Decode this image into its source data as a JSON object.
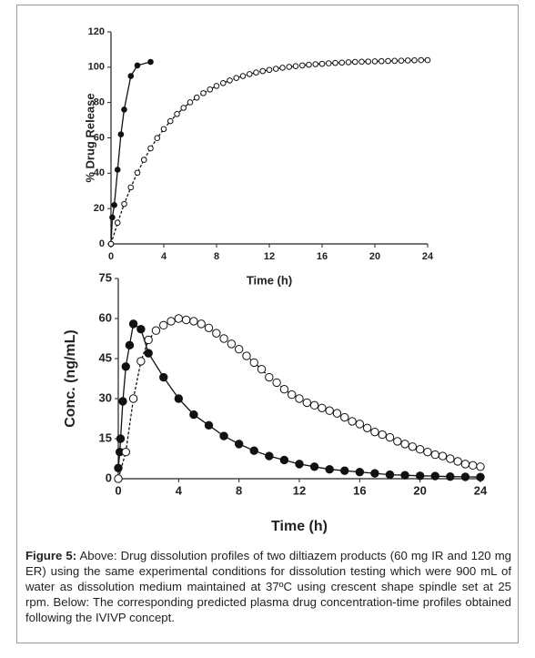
{
  "chart_data": [
    {
      "type": "line",
      "xlabel": "Time (h)",
      "ylabel": "% Drug Release",
      "xlim": [
        0,
        24
      ],
      "ylim": [
        0,
        120
      ],
      "xticks": [
        0,
        4,
        8,
        12,
        16,
        20,
        24
      ],
      "yticks": [
        0,
        20,
        40,
        60,
        80,
        100,
        120
      ],
      "series": [
        {
          "color": "#111111",
          "marker": "filled",
          "line_style": "solid",
          "x": [
            0,
            0.1,
            0.25,
            0.5,
            0.75,
            1,
            1.5,
            2,
            3
          ],
          "values": [
            0,
            15,
            22,
            42,
            62,
            76,
            95,
            101,
            103
          ]
        },
        {
          "color": "#111111",
          "marker": "open",
          "line_style": "dashed",
          "x": [
            0,
            0.5,
            1,
            1.5,
            2,
            2.5,
            3,
            3.5,
            4,
            4.5,
            5,
            5.5,
            6,
            6.5,
            7,
            7.5,
            8,
            8.5,
            9,
            9.5,
            10,
            10.5,
            11,
            11.5,
            12,
            12.5,
            13,
            13.5,
            14,
            14.5,
            15,
            15.5,
            16,
            16.5,
            17,
            17.5,
            18,
            18.5,
            19,
            19.5,
            20,
            20.5,
            21,
            21.5,
            22,
            22.5,
            23,
            23.5,
            24
          ],
          "values": [
            0,
            12,
            22.6,
            32,
            40.3,
            47.6,
            54.1,
            59.9,
            65,
            69.5,
            73.5,
            77,
            80.1,
            82.8,
            85.3,
            87.4,
            89.4,
            91,
            92.5,
            93.9,
            95,
            96.1,
            97,
            97.8,
            98.5,
            99.1,
            99.7,
            100.2,
            100.6,
            101,
            101.4,
            101.7,
            101.9,
            102.2,
            102.4,
            102.6,
            102.8,
            103,
            103.1,
            103.2,
            103.3,
            103.4,
            103.5,
            103.6,
            103.7,
            103.8,
            103.9,
            104,
            104
          ]
        }
      ]
    },
    {
      "type": "line",
      "xlabel": "Time (h)",
      "ylabel": "Conc. (ng/mL)",
      "xlim": [
        0,
        24
      ],
      "ylim": [
        0,
        75
      ],
      "xticks": [
        0,
        4,
        8,
        12,
        16,
        20,
        24
      ],
      "yticks": [
        0,
        15,
        30,
        45,
        60,
        75
      ],
      "series": [
        {
          "color": "#111111",
          "marker": "filled",
          "line_style": "solid",
          "x": [
            0,
            0.1,
            0.15,
            0.3,
            0.5,
            0.75,
            1,
            1.5,
            2,
            3,
            4,
            5,
            6,
            7,
            8,
            9,
            10,
            11,
            12,
            13,
            14,
            15,
            16,
            17,
            18,
            19,
            20,
            21,
            22,
            23,
            24
          ],
          "values": [
            4,
            10,
            15,
            29,
            42,
            50,
            58,
            56,
            47,
            38,
            30,
            24,
            20,
            16,
            13,
            10.5,
            8.5,
            7,
            5.5,
            4.5,
            3.5,
            3,
            2.5,
            2,
            1.5,
            1.3,
            1.1,
            1,
            0.8,
            0.7,
            0.6
          ]
        },
        {
          "color": "#111111",
          "marker": "open",
          "line_style": "dashed",
          "x": [
            0,
            0.5,
            1,
            1.5,
            2,
            2.5,
            3,
            3.5,
            4,
            4.5,
            5,
            5.5,
            6,
            6.5,
            7,
            7.5,
            8,
            8.5,
            9,
            9.5,
            10,
            10.5,
            11,
            11.5,
            12,
            12.5,
            13,
            13.5,
            14,
            14.5,
            15,
            15.5,
            16,
            16.5,
            17,
            17.5,
            18,
            18.5,
            19,
            19.5,
            20,
            20.5,
            21,
            21.5,
            22,
            22.5,
            23,
            23.5,
            24
          ],
          "values": [
            0,
            10,
            30,
            44,
            52,
            55.5,
            57.5,
            59,
            60,
            59.5,
            59,
            58,
            56.5,
            54.5,
            52.5,
            50.5,
            48.5,
            46,
            43.5,
            41,
            38,
            36,
            33.5,
            31.5,
            30,
            28.5,
            27.5,
            26.5,
            25.5,
            24.5,
            23,
            21.5,
            20.5,
            19,
            17.5,
            16.5,
            15.5,
            14,
            13,
            12,
            11,
            10,
            9,
            8.5,
            7.5,
            6.5,
            5.5,
            5,
            4.5
          ]
        }
      ]
    }
  ],
  "caption": {
    "label": "Figure 5:",
    "text": "Above: Drug dissolution profiles of two diltiazem products (60 mg IR and 120 mg ER) using the same experimental conditions for dissolution testing which were 900 mL of water as dissolution medium maintained at 37ºC using crescent shape spindle set at 25 rpm. Below: The corresponding predicted plasma drug concentration-time profiles obtained following the IVIVP concept."
  }
}
